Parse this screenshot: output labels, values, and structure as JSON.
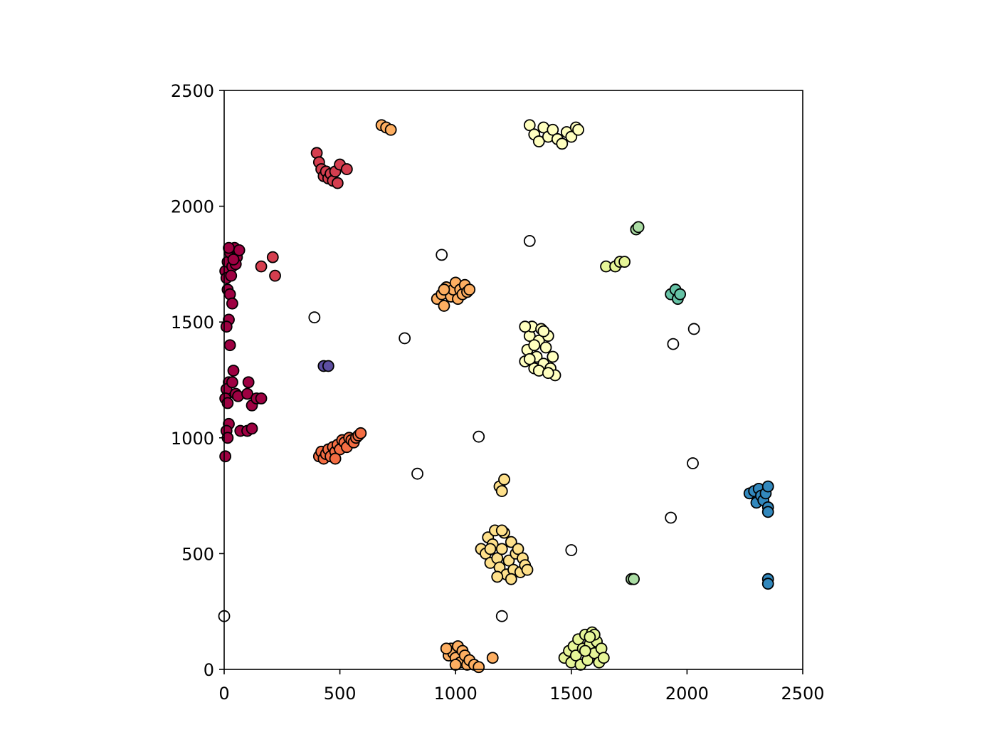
{
  "chart_data": {
    "type": "scatter",
    "title": "",
    "xlabel": "",
    "ylabel": "",
    "xlim": [
      0,
      2500
    ],
    "ylim": [
      0,
      2500
    ],
    "grid": false,
    "legend": "none",
    "xticks": [
      "0",
      "500",
      "1000",
      "1500",
      "2000",
      "2500"
    ],
    "yticks": [
      "0",
      "500",
      "1000",
      "1500",
      "2000",
      "2500"
    ],
    "marker_edge_color": "#000000",
    "noise_color": "#ffffff",
    "clusters": [
      {
        "color": "#9e0142",
        "points": [
          [
            5,
            1720
          ],
          [
            15,
            1760
          ],
          [
            25,
            1800
          ],
          [
            35,
            1740
          ],
          [
            45,
            1820
          ],
          [
            55,
            1780
          ],
          [
            65,
            1810
          ],
          [
            10,
            1690
          ],
          [
            30,
            1700
          ],
          [
            50,
            1750
          ],
          [
            20,
            1820
          ],
          [
            40,
            1770
          ],
          [
            15,
            1640
          ],
          [
            25,
            1620
          ],
          [
            35,
            1580
          ],
          [
            20,
            1510
          ],
          [
            10,
            1480
          ],
          [
            25,
            1400
          ],
          [
            40,
            1290
          ],
          [
            20,
            1240
          ],
          [
            10,
            1210
          ],
          [
            35,
            1240
          ],
          [
            50,
            1190
          ],
          [
            60,
            1180
          ],
          [
            5,
            1170
          ],
          [
            15,
            1150
          ],
          [
            20,
            1060
          ],
          [
            10,
            1030
          ],
          [
            15,
            1000
          ],
          [
            5,
            920
          ],
          [
            70,
            1030
          ],
          [
            100,
            1030
          ],
          [
            120,
            1040
          ],
          [
            100,
            1190
          ],
          [
            105,
            1240
          ],
          [
            120,
            1140
          ],
          [
            140,
            1170
          ],
          [
            160,
            1170
          ]
        ]
      },
      {
        "color": "#d53e4f",
        "points": [
          [
            160,
            1740
          ],
          [
            210,
            1780
          ],
          [
            220,
            1700
          ],
          [
            400,
            2230
          ],
          [
            410,
            2190
          ],
          [
            420,
            2160
          ],
          [
            430,
            2130
          ],
          [
            440,
            2150
          ],
          [
            450,
            2120
          ],
          [
            460,
            2140
          ],
          [
            470,
            2110
          ],
          [
            480,
            2150
          ],
          [
            490,
            2100
          ],
          [
            500,
            2180
          ],
          [
            530,
            2160
          ]
        ]
      },
      {
        "color": "#f46d43",
        "points": [
          [
            410,
            920
          ],
          [
            420,
            940
          ],
          [
            430,
            910
          ],
          [
            440,
            930
          ],
          [
            450,
            950
          ],
          [
            460,
            920
          ],
          [
            470,
            960
          ],
          [
            480,
            940
          ],
          [
            490,
            970
          ],
          [
            500,
            950
          ],
          [
            510,
            990
          ],
          [
            520,
            980
          ],
          [
            530,
            960
          ],
          [
            540,
            1000
          ],
          [
            550,
            990
          ],
          [
            560,
            980
          ],
          [
            570,
            1000
          ],
          [
            580,
            1010
          ],
          [
            590,
            1020
          ],
          [
            480,
            910
          ]
        ]
      },
      {
        "color": "#fdae61",
        "points": [
          [
            680,
            2350
          ],
          [
            700,
            2340
          ],
          [
            720,
            2330
          ],
          [
            920,
            1600
          ],
          [
            940,
            1620
          ],
          [
            950,
            1570
          ],
          [
            960,
            1650
          ],
          [
            980,
            1610
          ],
          [
            990,
            1640
          ],
          [
            1000,
            1670
          ],
          [
            1010,
            1600
          ],
          [
            1020,
            1640
          ],
          [
            1030,
            1620
          ],
          [
            1040,
            1660
          ],
          [
            1050,
            1630
          ],
          [
            1060,
            1640
          ],
          [
            950,
            1640
          ],
          [
            970,
            60
          ],
          [
            980,
            90
          ],
          [
            990,
            70
          ],
          [
            1000,
            50
          ],
          [
            1010,
            100
          ],
          [
            1020,
            30
          ],
          [
            1030,
            80
          ],
          [
            1040,
            60
          ],
          [
            1050,
            20
          ],
          [
            1060,
            40
          ],
          [
            1080,
            20
          ],
          [
            1100,
            10
          ],
          [
            1160,
            50
          ],
          [
            960,
            90
          ],
          [
            1000,
            20
          ]
        ]
      },
      {
        "color": "#fee08b",
        "points": [
          [
            1190,
            790
          ],
          [
            1200,
            770
          ],
          [
            1210,
            820
          ],
          [
            1110,
            520
          ],
          [
            1130,
            500
          ],
          [
            1140,
            570
          ],
          [
            1150,
            460
          ],
          [
            1160,
            540
          ],
          [
            1170,
            600
          ],
          [
            1180,
            480
          ],
          [
            1190,
            440
          ],
          [
            1200,
            520
          ],
          [
            1210,
            590
          ],
          [
            1220,
            410
          ],
          [
            1230,
            470
          ],
          [
            1240,
            550
          ],
          [
            1250,
            430
          ],
          [
            1260,
            500
          ],
          [
            1270,
            520
          ],
          [
            1280,
            420
          ],
          [
            1290,
            480
          ],
          [
            1300,
            450
          ],
          [
            1310,
            430
          ],
          [
            1180,
            400
          ],
          [
            1200,
            600
          ],
          [
            1150,
            520
          ],
          [
            1240,
            390
          ]
        ]
      },
      {
        "color": "#ffffbf",
        "points": [
          [
            1300,
            1330
          ],
          [
            1310,
            1380
          ],
          [
            1320,
            1440
          ],
          [
            1330,
            1480
          ],
          [
            1340,
            1300
          ],
          [
            1350,
            1350
          ],
          [
            1360,
            1420
          ],
          [
            1370,
            1470
          ],
          [
            1380,
            1320
          ],
          [
            1390,
            1390
          ],
          [
            1400,
            1440
          ],
          [
            1410,
            1300
          ],
          [
            1420,
            1350
          ],
          [
            1430,
            1270
          ],
          [
            1300,
            1480
          ],
          [
            1360,
            1290
          ],
          [
            1380,
            1460
          ],
          [
            1320,
            1340
          ],
          [
            1340,
            1400
          ],
          [
            1400,
            1280
          ],
          [
            1320,
            2350
          ],
          [
            1340,
            2310
          ],
          [
            1360,
            2280
          ],
          [
            1380,
            2340
          ],
          [
            1400,
            2300
          ],
          [
            1420,
            2330
          ],
          [
            1440,
            2290
          ],
          [
            1460,
            2270
          ],
          [
            1480,
            2320
          ],
          [
            1500,
            2300
          ],
          [
            1520,
            2340
          ],
          [
            1530,
            2330
          ]
        ]
      },
      {
        "color": "#e6f598",
        "points": [
          [
            1470,
            50
          ],
          [
            1490,
            80
          ],
          [
            1500,
            30
          ],
          [
            1510,
            100
          ],
          [
            1520,
            60
          ],
          [
            1530,
            130
          ],
          [
            1540,
            20
          ],
          [
            1550,
            90
          ],
          [
            1560,
            150
          ],
          [
            1570,
            40
          ],
          [
            1580,
            110
          ],
          [
            1590,
            160
          ],
          [
            1600,
            70
          ],
          [
            1610,
            120
          ],
          [
            1620,
            30
          ],
          [
            1630,
            90
          ],
          [
            1640,
            50
          ],
          [
            1600,
            150
          ],
          [
            1580,
            140
          ],
          [
            1560,
            80
          ],
          [
            1650,
            1740
          ],
          [
            1690,
            1740
          ],
          [
            1710,
            1760
          ],
          [
            1730,
            1760
          ]
        ]
      },
      {
        "color": "#abdda4",
        "points": [
          [
            1760,
            390
          ],
          [
            1770,
            390
          ],
          [
            1780,
            1900
          ],
          [
            1790,
            1910
          ]
        ]
      },
      {
        "color": "#66c2a5",
        "points": [
          [
            1930,
            1620
          ],
          [
            1950,
            1640
          ],
          [
            1960,
            1600
          ],
          [
            1970,
            1620
          ]
        ]
      },
      {
        "color": "#3288bd",
        "points": [
          [
            2270,
            760
          ],
          [
            2290,
            770
          ],
          [
            2300,
            720
          ],
          [
            2310,
            780
          ],
          [
            2320,
            750
          ],
          [
            2330,
            730
          ],
          [
            2340,
            760
          ],
          [
            2350,
            700
          ],
          [
            2350,
            680
          ],
          [
            2350,
            790
          ],
          [
            2350,
            390
          ],
          [
            2350,
            370
          ]
        ]
      },
      {
        "color": "#5e4fa2",
        "points": [
          [
            430,
            1310
          ],
          [
            450,
            1310
          ]
        ]
      }
    ],
    "noise_points": [
      [
        0,
        230
      ],
      [
        390,
        1520
      ],
      [
        780,
        1430
      ],
      [
        835,
        845
      ],
      [
        940,
        1790
      ],
      [
        1100,
        1005
      ],
      [
        1200,
        230
      ],
      [
        1320,
        1850
      ],
      [
        1500,
        515
      ],
      [
        1930,
        655
      ],
      [
        1940,
        1405
      ],
      [
        2025,
        890
      ],
      [
        2030,
        1470
      ]
    ]
  }
}
